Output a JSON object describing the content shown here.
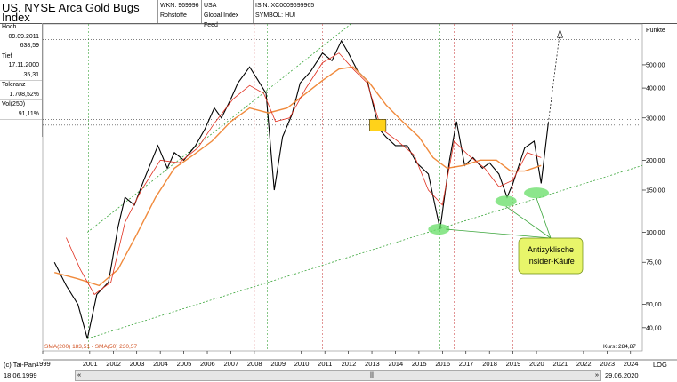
{
  "header": {
    "title": "US. NYSE Arca Gold Bugs Index",
    "wkn": "WKN: 969996",
    "sector": "Rohstoffe",
    "country": "USA",
    "feed": "Global Index Feed",
    "isin": "ISIN: XC0009699965",
    "symbol": "SYMBOL: HUI"
  },
  "sidebar": {
    "hoch_label": "Hoch",
    "hoch_date": "09.09.2011",
    "hoch_value": "638,59",
    "tief_label": "Tief",
    "tief_date": "17.11.2000",
    "tief_value": "35,31",
    "toleranz_label": "Toleranz",
    "toleranz_value": "1.708,52%",
    "vol_label": "Vol(250)",
    "vol_value": "91,11%"
  },
  "chart_labels": {
    "punkte": "Punkte",
    "sma_legend": "SMA(200) 183,51 - SMA(50) 230,57",
    "kurs": "Kurs: 284,87",
    "annotation_line1": "Antizyklische",
    "annotation_line2": "Insider-Käufe"
  },
  "footer": {
    "copyright": "(c) Tai-Pan",
    "start_date": "18.06.1999",
    "end_date": "29.06.2020",
    "scale_mode": "LOG",
    "scroll_left": "«",
    "scroll_mid": "||",
    "scroll_right": "»"
  },
  "colors": {
    "price": "#000000",
    "sma200": "#f08a3c",
    "sma50": "#e03020",
    "trend": "#3aa53a",
    "highlight": "#66dd66",
    "callout": "#e8f56a",
    "marker": "#ffd21a"
  },
  "chart_data": {
    "type": "line",
    "scale": "log",
    "y_ticks": [
      40,
      50,
      75,
      100,
      150,
      200,
      300,
      400,
      500
    ],
    "y_tick_labels": [
      "40,00",
      "50,00",
      "75,00",
      "100,00",
      "150,00",
      "200,00",
      "300,00",
      "400,00",
      "500,00"
    ],
    "x_labels": [
      "1999",
      "2001",
      "2002",
      "2003",
      "2004",
      "2005",
      "2006",
      "2007",
      "2008",
      "2009",
      "2010",
      "2011",
      "2012",
      "2013",
      "2014",
      "2015",
      "2016",
      "2017",
      "2018",
      "2019",
      "2020",
      "2021",
      "2022",
      "2023",
      "2024"
    ],
    "series": [
      {
        "name": "HUI",
        "x": [
          1999.5,
          2000.0,
          2000.5,
          2000.9,
          2001.3,
          2001.8,
          2002.2,
          2002.5,
          2002.9,
          2003.3,
          2003.9,
          2004.3,
          2004.6,
          2005.0,
          2005.5,
          2005.9,
          2006.3,
          2006.6,
          2007.0,
          2007.3,
          2007.8,
          2008.1,
          2008.5,
          2008.85,
          2009.2,
          2009.6,
          2009.95,
          2010.4,
          2010.9,
          2011.3,
          2011.7,
          2012.0,
          2012.4,
          2012.8,
          2013.3,
          2013.6,
          2014.0,
          2014.5,
          2014.9,
          2015.4,
          2015.9,
          2016.3,
          2016.6,
          2016.95,
          2017.3,
          2017.7,
          2018.0,
          2018.4,
          2018.75,
          2019.0,
          2019.5,
          2019.9,
          2020.2,
          2020.5
        ],
        "values": [
          75,
          60,
          50,
          36,
          55,
          62,
          105,
          140,
          130,
          165,
          230,
          185,
          215,
          200,
          230,
          270,
          330,
          300,
          360,
          420,
          490,
          440,
          380,
          150,
          250,
          310,
          420,
          470,
          560,
          520,
          630,
          560,
          470,
          430,
          270,
          250,
          230,
          230,
          195,
          175,
          103,
          200,
          290,
          190,
          205,
          185,
          195,
          175,
          140,
          160,
          225,
          240,
          160,
          285
        ]
      },
      {
        "name": "SMA(200)",
        "x": [
          1999.5,
          2000.5,
          2001.4,
          2002.2,
          2003.0,
          2003.8,
          2004.6,
          2005.4,
          2006.2,
          2007.0,
          2007.8,
          2008.6,
          2009.4,
          2010.2,
          2010.9,
          2011.6,
          2012.2,
          2012.9,
          2013.6,
          2014.3,
          2015.0,
          2015.6,
          2016.2,
          2016.9,
          2017.6,
          2018.3,
          2018.9,
          2019.5,
          2020.2
        ],
        "values": [
          68,
          64,
          60,
          70,
          98,
          140,
          185,
          210,
          240,
          290,
          330,
          315,
          330,
          380,
          430,
          480,
          490,
          420,
          340,
          290,
          250,
          205,
          185,
          190,
          200,
          200,
          180,
          180,
          190
        ]
      },
      {
        "name": "SMA(50)",
        "x": [
          2000.0,
          2000.6,
          2001.2,
          2001.9,
          2002.5,
          2003.2,
          2004.0,
          2004.8,
          2005.6,
          2006.3,
          2007.1,
          2007.8,
          2008.4,
          2008.9,
          2009.5,
          2010.2,
          2010.9,
          2011.6,
          2012.2,
          2012.8,
          2013.4,
          2014.1,
          2014.8,
          2015.4,
          2016.0,
          2016.5,
          2017.1,
          2017.8,
          2018.4,
          2019.0,
          2019.6,
          2020.2
        ],
        "values": [
          95,
          70,
          55,
          62,
          110,
          150,
          200,
          195,
          225,
          285,
          360,
          410,
          380,
          290,
          300,
          400,
          510,
          560,
          480,
          420,
          270,
          240,
          210,
          150,
          130,
          240,
          210,
          185,
          155,
          165,
          215,
          205
        ]
      }
    ]
  }
}
